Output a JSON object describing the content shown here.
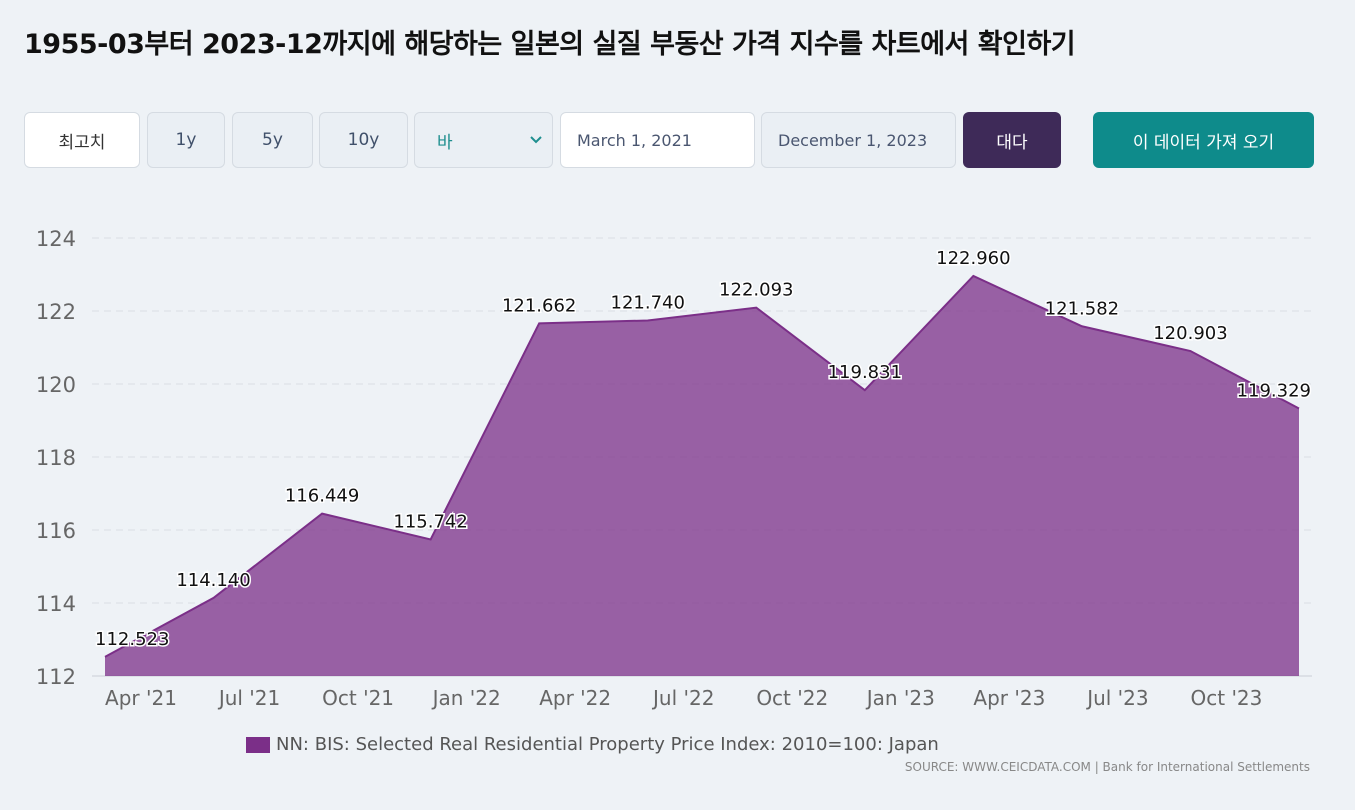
{
  "page": {
    "title": "1955-03부터 2023-12까지에 해당하는 일본의 실질 부동산 가격 지수를 차트에서 확인하기"
  },
  "toolbar": {
    "max_label": "최고치",
    "range_1y": "1y",
    "range_5y": "5y",
    "range_10y": "10y",
    "chart_type": "바",
    "start_date": "March 1, 2021",
    "end_date": "December 1, 2023",
    "compare_label": "대다",
    "get_data_label": "이 데이터 가져 오기"
  },
  "colors": {
    "series": "#7b2f88",
    "compare_button": "#3e2a58",
    "get_button": "#0e8b8b"
  },
  "footer": {
    "legend_label": "NN: BIS: Selected Real Residential Property Price Index: 2010=100: Japan",
    "source": "SOURCE: WWW.CEICDATA.COM | Bank for International Settlements"
  },
  "chart_data": {
    "type": "area",
    "title": "",
    "xlabel": "",
    "ylabel": "",
    "ylim": [
      112,
      124
    ],
    "yticks": [
      112,
      114,
      116,
      118,
      120,
      122,
      124
    ],
    "grid": true,
    "x_tick_labels": [
      "Apr '21",
      "Jul '21",
      "Oct '21",
      "Jan '22",
      "Apr '22",
      "Jul '22",
      "Oct '22",
      "Jan '23",
      "Apr '23",
      "Jul '23",
      "Oct '23"
    ],
    "series": [
      {
        "name": "NN: BIS: Selected Real Residential Property Price Index: 2010=100: Japan",
        "x": [
          "2021-03",
          "2021-06",
          "2021-09",
          "2021-12",
          "2022-03",
          "2022-06",
          "2022-09",
          "2022-12",
          "2023-03",
          "2023-06",
          "2023-09",
          "2023-12"
        ],
        "values": [
          112.523,
          114.14,
          116.449,
          115.742,
          121.662,
          121.74,
          122.093,
          119.831,
          122.96,
          121.582,
          120.903,
          119.329
        ],
        "labels": [
          "112.523",
          "114.140",
          "116.449",
          "115.742",
          "121.662",
          "121.740",
          "122.093",
          "119.831",
          "122.960",
          "121.582",
          "120.903",
          "119.329"
        ]
      }
    ]
  }
}
